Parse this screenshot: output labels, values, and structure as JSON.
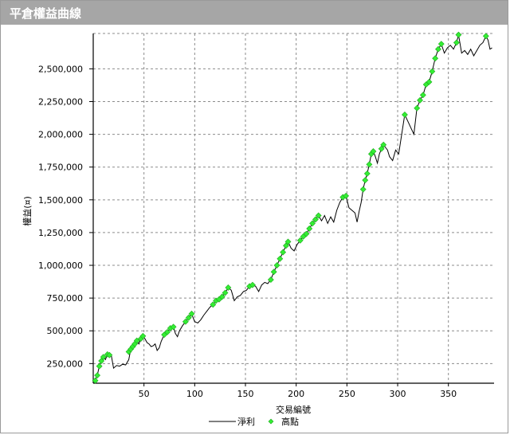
{
  "window": {
    "title": "平倉權益曲線"
  },
  "legend": {
    "net_label": "淨利",
    "high_label": "高點"
  },
  "colors": {
    "line": "#000000",
    "high": "#33ee33",
    "grid": "#8c8c8c",
    "title_bar": "#a6a6a6"
  },
  "chart_data": {
    "type": "line",
    "title": "平倉權益曲線",
    "xlabel": "交易編號",
    "ylabel": "權益(¤)",
    "xlim": [
      0,
      395
    ],
    "ylim": [
      100000,
      2770000
    ],
    "xticks": [
      50,
      100,
      150,
      200,
      250,
      300,
      350
    ],
    "xtick_labels": [
      "50",
      "100",
      "150",
      "200",
      "250",
      "300",
      "350"
    ],
    "yticks": [
      250000,
      500000,
      750000,
      1000000,
      1250000,
      1500000,
      1750000,
      2000000,
      2250000,
      2500000
    ],
    "ytick_labels": [
      "250,000",
      "500,000",
      "750,000",
      "1,000,000",
      "1,250,000",
      "1,500,000",
      "1,750,000",
      "2,000,000",
      "2,250,000",
      "2,500,000"
    ],
    "grid": true,
    "legend_position": "bottom-center",
    "series": [
      {
        "name": "淨利",
        "points": [
          [
            0,
            110000
          ],
          [
            2,
            120000
          ],
          [
            4,
            160000
          ],
          [
            6,
            230000
          ],
          [
            8,
            270000
          ],
          [
            10,
            300000
          ],
          [
            12,
            280000
          ],
          [
            14,
            320000
          ],
          [
            16,
            310000
          ],
          [
            18,
            305000
          ],
          [
            20,
            215000
          ],
          [
            23,
            235000
          ],
          [
            26,
            230000
          ],
          [
            29,
            245000
          ],
          [
            32,
            240000
          ],
          [
            35,
            280000
          ],
          [
            37,
            360000
          ],
          [
            39,
            380000
          ],
          [
            41,
            400000
          ],
          [
            43,
            425000
          ],
          [
            45,
            400000
          ],
          [
            47,
            440000
          ],
          [
            49,
            460000
          ],
          [
            51,
            440000
          ],
          [
            53,
            410000
          ],
          [
            55,
            400000
          ],
          [
            57,
            380000
          ],
          [
            59,
            385000
          ],
          [
            61,
            400000
          ],
          [
            63,
            350000
          ],
          [
            65,
            370000
          ],
          [
            67,
            420000
          ],
          [
            70,
            470000
          ],
          [
            73,
            490000
          ],
          [
            76,
            520000
          ],
          [
            79,
            530000
          ],
          [
            81,
            480000
          ],
          [
            83,
            455000
          ],
          [
            85,
            500000
          ],
          [
            88,
            540000
          ],
          [
            91,
            570000
          ],
          [
            94,
            600000
          ],
          [
            97,
            630000
          ],
          [
            100,
            570000
          ],
          [
            103,
            560000
          ],
          [
            106,
            585000
          ],
          [
            109,
            620000
          ],
          [
            112,
            650000
          ],
          [
            115,
            680000
          ],
          [
            118,
            700000
          ],
          [
            121,
            730000
          ],
          [
            124,
            740000
          ],
          [
            127,
            760000
          ],
          [
            130,
            790000
          ],
          [
            133,
            830000
          ],
          [
            136,
            810000
          ],
          [
            139,
            730000
          ],
          [
            142,
            760000
          ],
          [
            145,
            770000
          ],
          [
            148,
            800000
          ],
          [
            151,
            810000
          ],
          [
            154,
            840000
          ],
          [
            157,
            850000
          ],
          [
            160,
            840000
          ],
          [
            163,
            800000
          ],
          [
            166,
            850000
          ],
          [
            169,
            870000
          ],
          [
            172,
            860000
          ],
          [
            175,
            890000
          ],
          [
            178,
            950000
          ],
          [
            181,
            1000000
          ],
          [
            184,
            1050000
          ],
          [
            187,
            1100000
          ],
          [
            190,
            1150000
          ],
          [
            192,
            1180000
          ],
          [
            195,
            1130000
          ],
          [
            198,
            1110000
          ],
          [
            201,
            1160000
          ],
          [
            204,
            1190000
          ],
          [
            207,
            1220000
          ],
          [
            210,
            1240000
          ],
          [
            213,
            1280000
          ],
          [
            216,
            1320000
          ],
          [
            219,
            1350000
          ],
          [
            222,
            1380000
          ],
          [
            225,
            1340000
          ],
          [
            228,
            1380000
          ],
          [
            231,
            1320000
          ],
          [
            234,
            1370000
          ],
          [
            237,
            1330000
          ],
          [
            240,
            1420000
          ],
          [
            243,
            1480000
          ],
          [
            246,
            1520000
          ],
          [
            249,
            1530000
          ],
          [
            252,
            1440000
          ],
          [
            255,
            1420000
          ],
          [
            258,
            1400000
          ],
          [
            260,
            1330000
          ],
          [
            262,
            1410000
          ],
          [
            264,
            1480000
          ],
          [
            266,
            1580000
          ],
          [
            268,
            1650000
          ],
          [
            270,
            1700000
          ],
          [
            272,
            1770000
          ],
          [
            274,
            1850000
          ],
          [
            276,
            1870000
          ],
          [
            278,
            1830000
          ],
          [
            280,
            1780000
          ],
          [
            282,
            1850000
          ],
          [
            284,
            1890000
          ],
          [
            286,
            1920000
          ],
          [
            288,
            1900000
          ],
          [
            290,
            1880000
          ],
          [
            292,
            1830000
          ],
          [
            295,
            1800000
          ],
          [
            298,
            1880000
          ],
          [
            301,
            1850000
          ],
          [
            304,
            2000000
          ],
          [
            307,
            2150000
          ],
          [
            310,
            2100000
          ],
          [
            313,
            2050000
          ],
          [
            316,
            2000000
          ],
          [
            319,
            2200000
          ],
          [
            322,
            2260000
          ],
          [
            325,
            2300000
          ],
          [
            328,
            2380000
          ],
          [
            331,
            2400000
          ],
          [
            334,
            2480000
          ],
          [
            337,
            2580000
          ],
          [
            340,
            2650000
          ],
          [
            343,
            2690000
          ],
          [
            346,
            2620000
          ],
          [
            349,
            2660000
          ],
          [
            352,
            2680000
          ],
          [
            355,
            2650000
          ],
          [
            358,
            2700000
          ],
          [
            360,
            2760000
          ],
          [
            363,
            2620000
          ],
          [
            366,
            2640000
          ],
          [
            369,
            2610000
          ],
          [
            372,
            2650000
          ],
          [
            375,
            2600000
          ],
          [
            378,
            2640000
          ],
          [
            381,
            2680000
          ],
          [
            384,
            2700000
          ],
          [
            387,
            2750000
          ],
          [
            389,
            2720000
          ],
          [
            391,
            2650000
          ],
          [
            393,
            2660000
          ]
        ]
      },
      {
        "name": "高點",
        "points": [
          [
            2,
            120000
          ],
          [
            4,
            160000
          ],
          [
            6,
            230000
          ],
          [
            8,
            270000
          ],
          [
            10,
            300000
          ],
          [
            14,
            320000
          ],
          [
            16,
            315000
          ],
          [
            35,
            340000
          ],
          [
            37,
            360000
          ],
          [
            39,
            380000
          ],
          [
            41,
            400000
          ],
          [
            43,
            425000
          ],
          [
            47,
            440000
          ],
          [
            49,
            460000
          ],
          [
            70,
            470000
          ],
          [
            73,
            490000
          ],
          [
            76,
            520000
          ],
          [
            79,
            530000
          ],
          [
            91,
            570000
          ],
          [
            94,
            600000
          ],
          [
            97,
            630000
          ],
          [
            118,
            700000
          ],
          [
            121,
            730000
          ],
          [
            124,
            740000
          ],
          [
            127,
            760000
          ],
          [
            130,
            790000
          ],
          [
            133,
            830000
          ],
          [
            154,
            840000
          ],
          [
            157,
            850000
          ],
          [
            175,
            890000
          ],
          [
            178,
            950000
          ],
          [
            181,
            1000000
          ],
          [
            184,
            1050000
          ],
          [
            187,
            1100000
          ],
          [
            190,
            1150000
          ],
          [
            192,
            1180000
          ],
          [
            204,
            1190000
          ],
          [
            207,
            1220000
          ],
          [
            210,
            1240000
          ],
          [
            213,
            1280000
          ],
          [
            216,
            1320000
          ],
          [
            219,
            1350000
          ],
          [
            222,
            1380000
          ],
          [
            246,
            1520000
          ],
          [
            249,
            1530000
          ],
          [
            266,
            1580000
          ],
          [
            268,
            1650000
          ],
          [
            270,
            1700000
          ],
          [
            272,
            1770000
          ],
          [
            274,
            1850000
          ],
          [
            276,
            1870000
          ],
          [
            284,
            1890000
          ],
          [
            286,
            1920000
          ],
          [
            307,
            2150000
          ],
          [
            319,
            2200000
          ],
          [
            322,
            2260000
          ],
          [
            325,
            2300000
          ],
          [
            328,
            2380000
          ],
          [
            331,
            2400000
          ],
          [
            334,
            2480000
          ],
          [
            337,
            2580000
          ],
          [
            340,
            2650000
          ],
          [
            343,
            2690000
          ],
          [
            358,
            2700000
          ],
          [
            360,
            2760000
          ],
          [
            387,
            2750000
          ]
        ]
      }
    ]
  }
}
